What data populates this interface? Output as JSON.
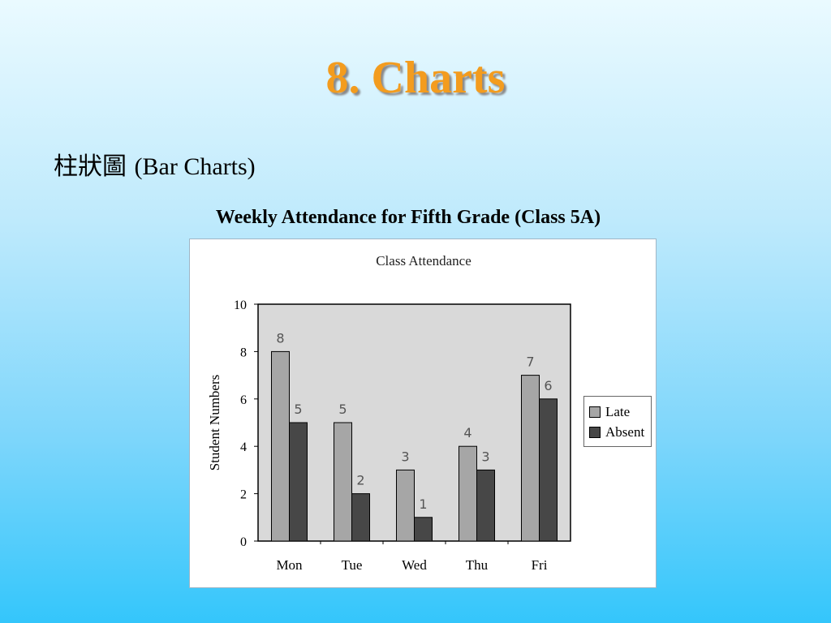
{
  "slide": {
    "title": "8. Charts",
    "bullet_chinese": "柱狀圖",
    "bullet_english": "(Bar Charts)"
  },
  "chart_heading": "Weekly Attendance for Fifth Grade (Class 5A)",
  "chart_data": {
    "type": "bar",
    "title": "Class Attendance",
    "xlabel": "",
    "ylabel": "Student Numbers",
    "categories": [
      "Mon",
      "Tue",
      "Wed",
      "Thu",
      "Fri"
    ],
    "series": [
      {
        "name": "Late",
        "values": [
          8,
          5,
          3,
          4,
          7
        ],
        "color": "#a6a6a6"
      },
      {
        "name": "Absent",
        "values": [
          5,
          2,
          1,
          3,
          6
        ],
        "color": "#474747"
      }
    ],
    "ylim": [
      0,
      10
    ],
    "yticks": [
      0,
      2,
      4,
      6,
      8,
      10
    ],
    "grid": false,
    "plot_background": "#d9d9d9",
    "legend_position": "right"
  }
}
